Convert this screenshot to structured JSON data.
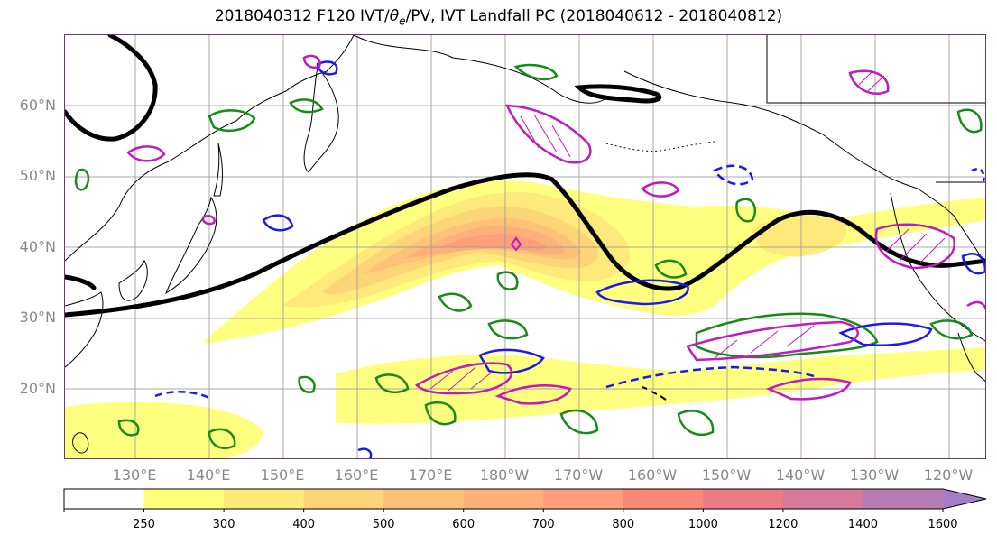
{
  "title": {
    "prefix": "2018040312 F120 IVT/",
    "theta": "θ",
    "sub": "e",
    "suffix": "/PV, IVT Landfall PC (2018040612 - 2018040812)"
  },
  "map": {
    "lat_labels": [
      "60°N",
      "50°N",
      "40°N",
      "30°N",
      "20°N"
    ],
    "lon_labels": [
      "130°E",
      "140°E",
      "150°E",
      "160°E",
      "170°E",
      "180°W",
      "170°W",
      "160°W",
      "150°W",
      "140°W",
      "130°W",
      "120°W"
    ],
    "lat_range": [
      10,
      70
    ],
    "lon_range_east": [
      120,
      245
    ],
    "gridlines": true,
    "colors": {
      "coast": "#000000",
      "grid": "#9a9a9a",
      "pv_line": "#000000",
      "theta_green": "#178a17",
      "ivt_blue": "#1a1aee",
      "magenta": "#c01ac0"
    }
  },
  "colorbar": {
    "ticks": [
      "250",
      "300",
      "400",
      "500",
      "600",
      "700",
      "800",
      "1000",
      "1200",
      "1400",
      "1600"
    ],
    "bins": [
      {
        "from": "0",
        "to": "250",
        "color": "#ffffff"
      },
      {
        "from": "250",
        "to": "300",
        "color": "#ffff78"
      },
      {
        "from": "300",
        "to": "400",
        "color": "#fde97a"
      },
      {
        "from": "400",
        "to": "500",
        "color": "#fcd479"
      },
      {
        "from": "500",
        "to": "600",
        "color": "#fcc178"
      },
      {
        "from": "600",
        "to": "700",
        "color": "#fdb078"
      },
      {
        "from": "700",
        "to": "800",
        "color": "#fd9f7a"
      },
      {
        "from": "800",
        "to": "1000",
        "color": "#fb8878"
      },
      {
        "from": "1000",
        "to": "1200",
        "color": "#ea7a84"
      },
      {
        "from": "1200",
        "to": "1400",
        "color": "#d7799a"
      },
      {
        "from": "1400",
        "to": "1600",
        "color": "#b67bb2"
      },
      {
        "from": "1600",
        "to": "extend",
        "color": "#a47ec7"
      }
    ]
  }
}
